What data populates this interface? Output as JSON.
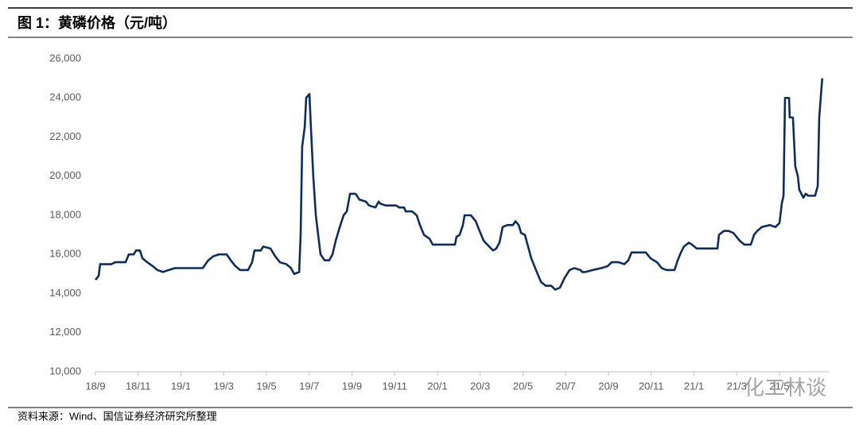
{
  "chart_data": {
    "type": "line",
    "title": "图 1：黄磷价格（元/吨）",
    "source": "资料来源：Wind、国信证券经济研究所整理",
    "watermark": "化工林谈",
    "color": "#0e2d5e",
    "xlim": [
      0,
      34
    ],
    "xticks": [
      {
        "value": 0,
        "label": "18/9"
      },
      {
        "value": 2,
        "label": "18/11"
      },
      {
        "value": 4,
        "label": "19/1"
      },
      {
        "value": 6,
        "label": "19/3"
      },
      {
        "value": 8,
        "label": "19/5"
      },
      {
        "value": 10,
        "label": "19/7"
      },
      {
        "value": 12,
        "label": "19/9"
      },
      {
        "value": 14,
        "label": "19/11"
      },
      {
        "value": 16,
        "label": "20/1"
      },
      {
        "value": 18,
        "label": "20/3"
      },
      {
        "value": 20,
        "label": "20/5"
      },
      {
        "value": 22,
        "label": "20/7"
      },
      {
        "value": 24,
        "label": "20/9"
      },
      {
        "value": 26,
        "label": "20/11"
      },
      {
        "value": 28,
        "label": "21/1"
      },
      {
        "value": 30,
        "label": "21/3"
      },
      {
        "value": 32,
        "label": "21/5"
      }
    ],
    "ylim": [
      10000,
      26000
    ],
    "yticks": [
      {
        "value": 10000,
        "label": "10,000"
      },
      {
        "value": 12000,
        "label": "12,000"
      },
      {
        "value": 14000,
        "label": "14,000"
      },
      {
        "value": 16000,
        "label": "16,000"
      },
      {
        "value": 18000,
        "label": "18,000"
      },
      {
        "value": 20000,
        "label": "20,000"
      },
      {
        "value": 22000,
        "label": "22,000"
      },
      {
        "value": 24000,
        "label": "24,000"
      },
      {
        "value": 26000,
        "label": "26,000"
      }
    ],
    "grid": false,
    "x": [
      0,
      0.15,
      0.22,
      0.74,
      0.93,
      1.41,
      1.56,
      1.79,
      1.9,
      2.08,
      2.2,
      2.42,
      2.68,
      2.9,
      3.16,
      3.42,
      3.72,
      5.02,
      5.28,
      5.51,
      5.77,
      6.14,
      6.33,
      6.55,
      6.77,
      7.14,
      7.33,
      7.44,
      7.74,
      7.85,
      8.19,
      8.41,
      8.63,
      8.93,
      9.15,
      9.3,
      9.53,
      9.6,
      9.67,
      9.79,
      9.86,
      10.01,
      10.08,
      10.19,
      10.31,
      10.42,
      10.53,
      10.72,
      10.94,
      11.09,
      11.24,
      11.46,
      11.61,
      11.76,
      11.91,
      12.17,
      12.35,
      12.65,
      12.8,
      13.1,
      13.25,
      13.32,
      13.58,
      14.07,
      14.21,
      14.44,
      14.51,
      14.81,
      15.03,
      15.18,
      15.37,
      15.63,
      15.78,
      16.82,
      16.89,
      17.04,
      17.19,
      17.27,
      17.56,
      17.79,
      17.97,
      18.16,
      18.42,
      18.6,
      18.75,
      18.9,
      19.05,
      19.27,
      19.53,
      19.65,
      19.8,
      19.91,
      20.09,
      20.24,
      20.39,
      20.61,
      20.84,
      21.06,
      21.32,
      21.51,
      21.73,
      21.95,
      22.18,
      22.4,
      22.7,
      22.77,
      22.92,
      23.26,
      23.67,
      23.96,
      24.15,
      24.48,
      24.74,
      24.93,
      25.08,
      25.75,
      25.97,
      26.27,
      26.49,
      26.72,
      27.09,
      27.24,
      27.39,
      27.53,
      27.76,
      27.91,
      28.13,
      29.1,
      29.17,
      29.4,
      29.62,
      29.84,
      30.14,
      30.36,
      30.66,
      30.81,
      30.96,
      31.18,
      31.55,
      31.81,
      32.0,
      32.11,
      32.19,
      32.26,
      32.45,
      32.48,
      32.63,
      32.74,
      32.86,
      32.93,
      33.12,
      33.23,
      33.34,
      33.67,
      33.79,
      33.86,
      34.0
    ],
    "values": [
      14700,
      14900,
      15500,
      15500,
      15600,
      15600,
      16000,
      16000,
      16200,
      16200,
      15800,
      15600,
      15400,
      15200,
      15100,
      15200,
      15300,
      15300,
      15700,
      15900,
      16000,
      16000,
      15700,
      15400,
      15200,
      15200,
      15600,
      16200,
      16200,
      16400,
      16300,
      15900,
      15600,
      15500,
      15300,
      15000,
      15100,
      17000,
      21500,
      22500,
      24000,
      24200,
      22500,
      20000,
      18000,
      17000,
      16000,
      15700,
      15700,
      16000,
      16700,
      17500,
      18000,
      18200,
      19100,
      19100,
      18800,
      18700,
      18500,
      18400,
      18700,
      18600,
      18500,
      18500,
      18400,
      18400,
      18200,
      18200,
      18000,
      17500,
      17000,
      16800,
      16500,
      16500,
      16900,
      17000,
      17500,
      18000,
      18000,
      17700,
      17200,
      16700,
      16400,
      16200,
      16300,
      16600,
      17400,
      17500,
      17500,
      17700,
      17500,
      17100,
      17000,
      16400,
      15800,
      15200,
      14600,
      14400,
      14400,
      14200,
      14300,
      14800,
      15200,
      15300,
      15200,
      15100,
      15100,
      15200,
      15300,
      15400,
      15600,
      15600,
      15500,
      15700,
      16100,
      16100,
      15800,
      15600,
      15300,
      15200,
      15200,
      15700,
      16100,
      16400,
      16600,
      16500,
      16300,
      16300,
      17000,
      17200,
      17200,
      17100,
      16700,
      16500,
      16500,
      17000,
      17200,
      17400,
      17500,
      17400,
      17600,
      18600,
      19000,
      24000,
      24000,
      23000,
      23000,
      20500,
      20000,
      19300,
      18900,
      19100,
      19000,
      19000,
      19500,
      23000,
      25000
    ]
  }
}
